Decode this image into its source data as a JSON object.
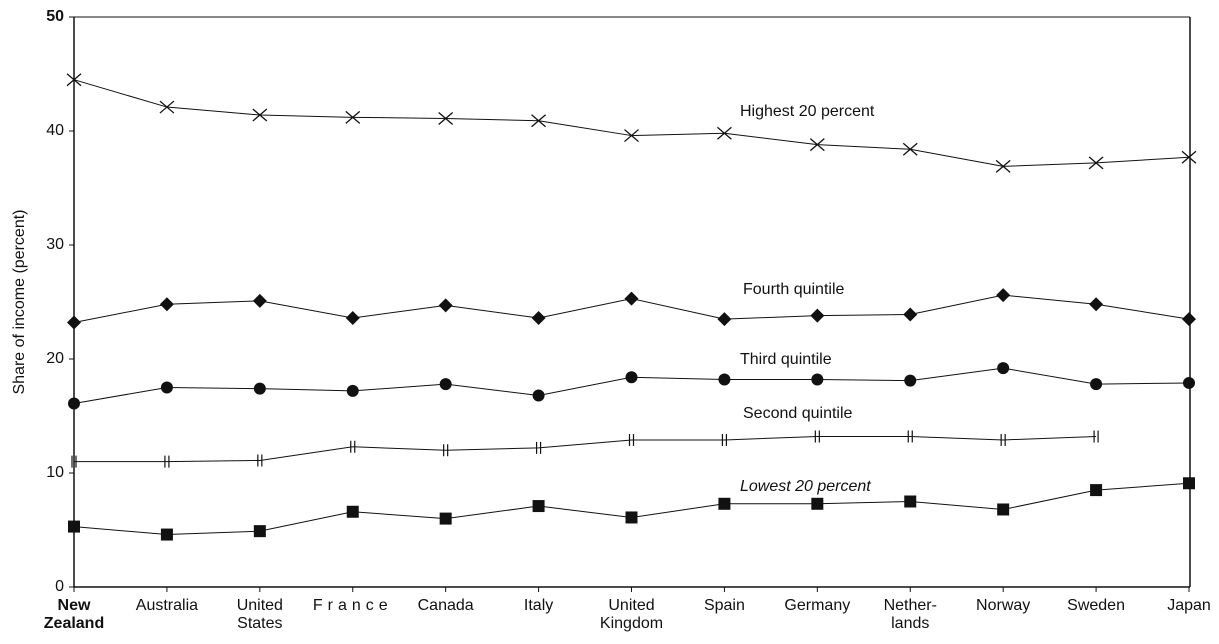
{
  "chart_data": {
    "type": "line",
    "y_label": "Share of income (percent)",
    "categories": [
      "New\nZealand",
      "Australia",
      "United\nStates",
      "France",
      "Canada",
      "Italy",
      "United\nKingdom",
      "Spain",
      "Germany",
      "Nether-\nlands",
      "Norway",
      "Sweden",
      "Japan"
    ],
    "series": [
      {
        "name": "Highest 20 percent",
        "color": "#111111",
        "marker": "x",
        "values": [
          44.5,
          42.1,
          41.4,
          41.2,
          41.1,
          40.9,
          39.6,
          39.8,
          38.8,
          38.4,
          36.9,
          37.2,
          37.7
        ]
      },
      {
        "name": "Fourth quintile",
        "color": "#111111",
        "marker": "diamond",
        "values": [
          23.2,
          24.8,
          25.1,
          23.6,
          24.7,
          23.6,
          25.3,
          23.5,
          23.8,
          23.9,
          25.6,
          24.8,
          23.5
        ]
      },
      {
        "name": "Third quintile",
        "color": "#111111",
        "marker": "circle",
        "values": [
          16.1,
          17.5,
          17.4,
          17.2,
          17.8,
          16.8,
          18.4,
          18.2,
          18.2,
          18.1,
          19.2,
          17.8,
          17.9
        ]
      },
      {
        "name": "Second quintile",
        "color": "#111111",
        "marker": "hash",
        "values": [
          11.0,
          11.0,
          11.1,
          12.3,
          12.0,
          12.2,
          12.9,
          12.9,
          13.2,
          13.2,
          12.9,
          13.2,
          null
        ]
      },
      {
        "name": "Lowest 20 percent",
        "color": "#111111",
        "marker": "square",
        "values": [
          5.3,
          4.6,
          4.9,
          6.6,
          6.0,
          7.1,
          6.1,
          7.3,
          7.3,
          7.5,
          6.8,
          8.5,
          9.1
        ]
      }
    ],
    "ylim": [
      0,
      50
    ],
    "yticks": [
      0,
      10,
      20,
      30,
      40,
      50
    ],
    "grid": false
  }
}
